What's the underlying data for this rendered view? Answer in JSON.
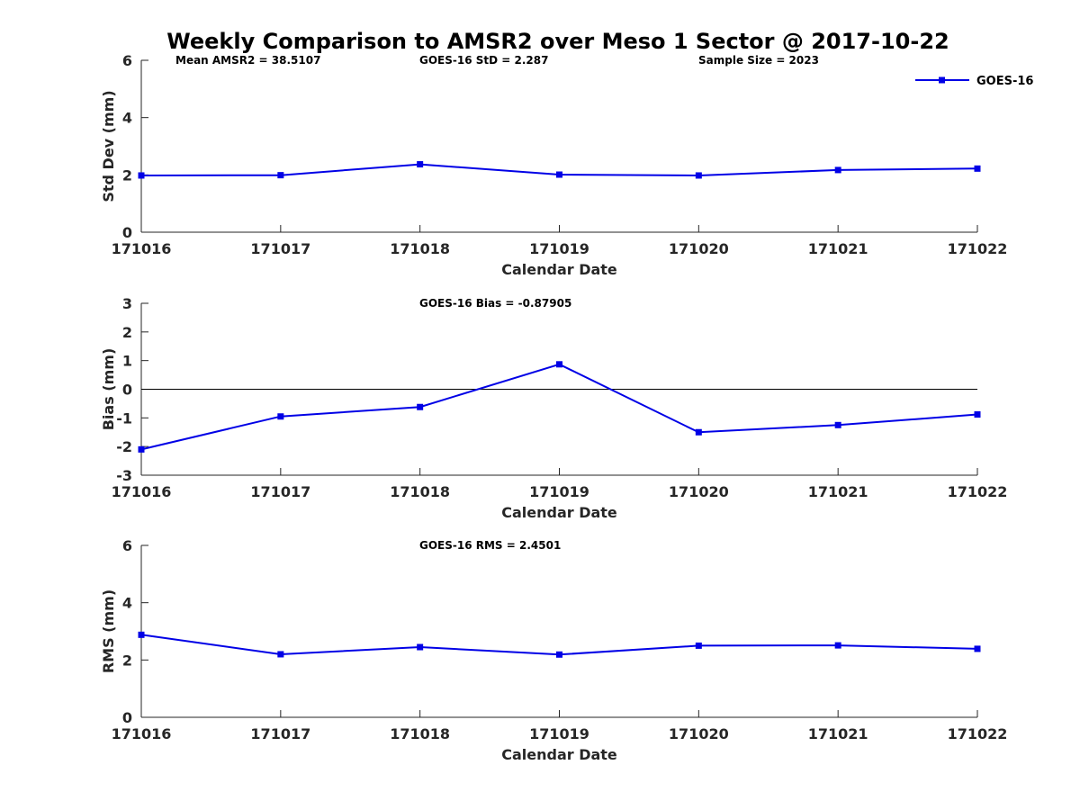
{
  "title": "Weekly Comparison to AMSR2 over Meso 1 Sector @ 2017-10-22",
  "colors": {
    "series": "#0000e6",
    "axis": "#262626",
    "zero_line": "#000000"
  },
  "legend": {
    "label": "GOES-16",
    "location": "top-right",
    "marker": "square"
  },
  "chart_data": [
    {
      "type": "line",
      "id": "std",
      "title": "",
      "xlabel": "Calendar Date",
      "ylabel": "Std Dev (mm)",
      "categories": [
        "171016",
        "171017",
        "171018",
        "171019",
        "171020",
        "171021",
        "171022"
      ],
      "series": [
        {
          "name": "GOES-16",
          "values": [
            1.98,
            1.99,
            2.37,
            2.01,
            1.98,
            2.17,
            2.22
          ]
        }
      ],
      "ylim": [
        0,
        6
      ],
      "yticks": [
        "0",
        "2",
        "4",
        "6"
      ],
      "annotations": [
        "Mean AMSR2 = 38.5107",
        "GOES-16 StD = 2.287",
        "Sample Size = 2023"
      ],
      "zero_line": false
    },
    {
      "type": "line",
      "id": "bias",
      "title": "",
      "xlabel": "Calendar Date",
      "ylabel": "Bias (mm)",
      "categories": [
        "171016",
        "171017",
        "171018",
        "171019",
        "171020",
        "171021",
        "171022"
      ],
      "series": [
        {
          "name": "GOES-16",
          "values": [
            -2.1,
            -0.95,
            -0.62,
            0.87,
            -1.5,
            -1.25,
            -0.88
          ]
        }
      ],
      "ylim": [
        -3,
        3
      ],
      "yticks": [
        "-3",
        "-2",
        "-1",
        "0",
        "1",
        "2",
        "3"
      ],
      "annotations": [
        "GOES-16 Bias  = -0.87905"
      ],
      "zero_line": true
    },
    {
      "type": "line",
      "id": "rms",
      "title": "",
      "xlabel": "Calendar Date",
      "ylabel": "RMS (mm)",
      "categories": [
        "171016",
        "171017",
        "171018",
        "171019",
        "171020",
        "171021",
        "171022"
      ],
      "series": [
        {
          "name": "GOES-16",
          "values": [
            2.88,
            2.2,
            2.45,
            2.19,
            2.5,
            2.51,
            2.39
          ]
        }
      ],
      "ylim": [
        0,
        6
      ],
      "yticks": [
        "0",
        "2",
        "4",
        "6"
      ],
      "annotations": [
        "GOES-16 RMS = 2.4501"
      ],
      "zero_line": false
    }
  ]
}
